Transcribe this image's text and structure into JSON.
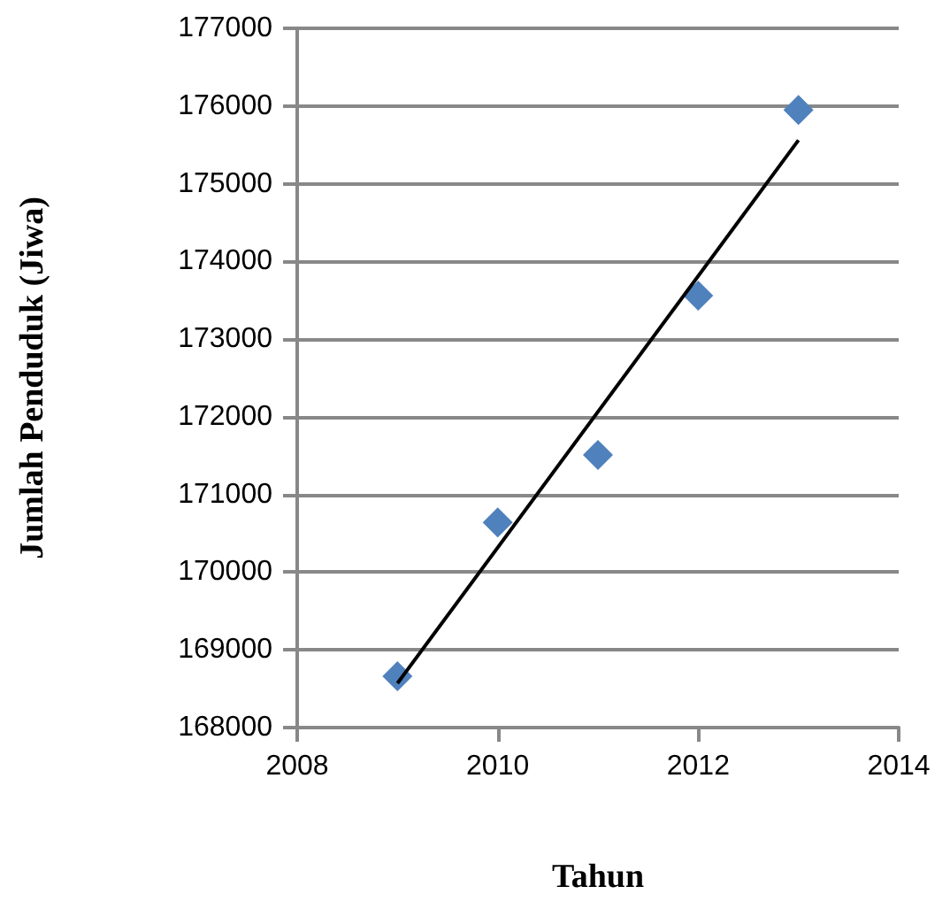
{
  "chart_data": {
    "type": "scatter",
    "xlabel": "Tahun",
    "ylabel": "Jumlah Penduduk (Jiwa)",
    "series": [
      {
        "color": "#4f81bd",
        "marker": "diamond",
        "x": [
          2009,
          2010,
          2011,
          2012,
          2013
        ],
        "values": [
          168660,
          170640,
          171510,
          173560,
          175950
        ]
      },
      {
        "type": "line",
        "color": "#000000",
        "marker": "none",
        "x": [
          2009,
          2013
        ],
        "values": [
          168570,
          175560
        ]
      }
    ],
    "xlim": [
      2008,
      2014
    ],
    "xticks": [
      2008,
      2010,
      2012,
      2014
    ],
    "ylim": [
      168000,
      177000
    ],
    "yticks": [
      168000,
      169000,
      170000,
      171000,
      172000,
      173000,
      174000,
      175000,
      176000,
      177000
    ],
    "grid": "y"
  }
}
